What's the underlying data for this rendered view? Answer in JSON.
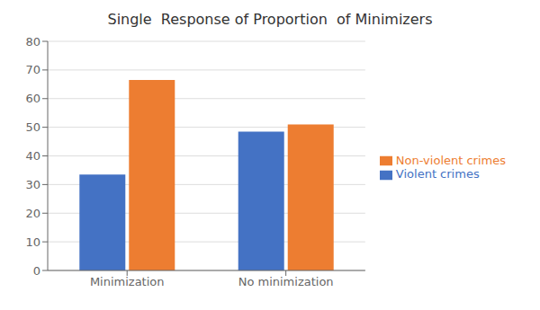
{
  "chart_data": {
    "type": "bar",
    "title": "Single  Response of Proportion  of Minimizers",
    "categories": [
      "Minimization",
      "No minimization"
    ],
    "series": [
      {
        "name": "Violent crimes",
        "color": "#4472C4",
        "values": [
          33.5,
          48.5
        ]
      },
      {
        "name": "Non-violent crimes",
        "color": "#ED7D31",
        "values": [
          66.5,
          51.0
        ]
      }
    ],
    "ylim": [
      0,
      80
    ],
    "yticks": [
      0,
      10,
      20,
      30,
      40,
      50,
      60,
      70,
      80
    ],
    "grid": true,
    "legend": "right"
  }
}
